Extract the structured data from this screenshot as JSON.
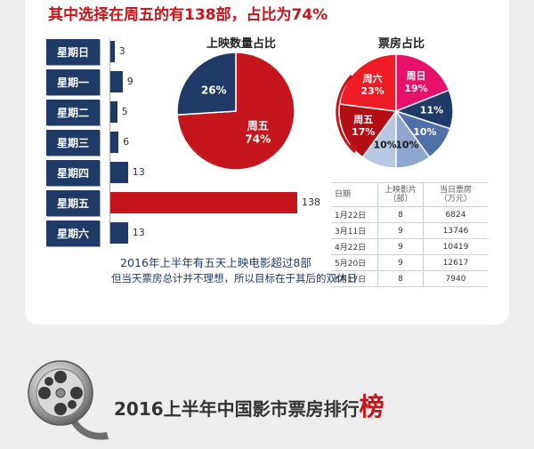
{
  "headline": "其中选择在周五的有138部，占比为74%",
  "colors": {
    "accent_red": "#c4161c",
    "navy": "#1f3a66"
  },
  "chart_data": [
    {
      "type": "bar",
      "orientation": "horizontal",
      "categories": [
        "星期日",
        "星期一",
        "星期二",
        "星期三",
        "星期四",
        "星期五",
        "星期六"
      ],
      "values": [
        3,
        9,
        5,
        6,
        13,
        138,
        13
      ],
      "value_labels": [
        "3",
        "9",
        "5",
        "6",
        "13",
        "138",
        "13"
      ],
      "highlight": "星期五",
      "colors": {
        "normal": "#1f3a66",
        "highlight": "#c4161c"
      },
      "annotation": [
        "2016年上半年有五天上映电影超过8部",
        "但当天票房总计并不理想，所以目标在于其后的双休日"
      ]
    },
    {
      "type": "pie",
      "title": "上映数量占比",
      "slices": [
        {
          "label": "周五",
          "value": 74,
          "text": "74%",
          "color": "#c4161c"
        },
        {
          "label": "",
          "value": 26,
          "text": "26%",
          "color": "#1f3a66"
        }
      ]
    },
    {
      "type": "pie",
      "title": "票房占比",
      "slices": [
        {
          "label": "周日",
          "value": 19,
          "text": "19%",
          "color": "#e8116a"
        },
        {
          "label": "",
          "value": 11,
          "text": "11%",
          "color": "#1f3a66"
        },
        {
          "label": "",
          "value": 10,
          "text": "10%",
          "color": "#4f6fa8"
        },
        {
          "label": "",
          "value": 10,
          "text": "10%",
          "color": "#8fa6cf"
        },
        {
          "label": "",
          "value": 10,
          "text": "10%",
          "color": "#b7c8e2"
        },
        {
          "label": "周五",
          "value": 17,
          "text": "17%",
          "color": "#b50f16"
        },
        {
          "label": "周六",
          "value": 23,
          "text": "23%",
          "color": "#ee1c25"
        }
      ]
    },
    {
      "type": "table",
      "columns": [
        "日期",
        "上映影片\n（部）",
        "当日票房\n（万元）"
      ],
      "rows": [
        [
          "1月22日",
          "8",
          "6824"
        ],
        [
          "3月11日",
          "9",
          "13746"
        ],
        [
          "4月22日",
          "9",
          "10419"
        ],
        [
          "5月20日",
          "9",
          "12617"
        ],
        [
          "6月17日",
          "8",
          "7940"
        ]
      ]
    }
  ],
  "footer": {
    "title": "2016上半年中国影市票房排行",
    "accent": "榜"
  }
}
